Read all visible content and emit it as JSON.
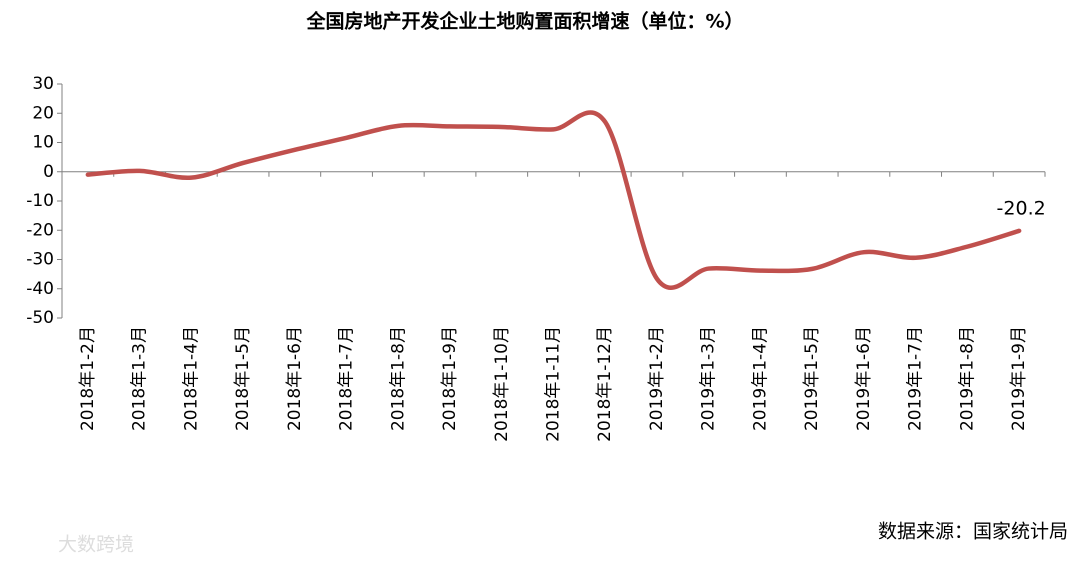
{
  "chart_data": {
    "type": "line",
    "title": "全国房地产开发企业土地购置面积增速（单位：%）",
    "categories": [
      "2018年1-2月",
      "2018年1-3月",
      "2018年1-4月",
      "2018年1-5月",
      "2018年1-6月",
      "2018年1-7月",
      "2018年1-8月",
      "2018年1-9月",
      "2018年1-10月",
      "2018年1-11月",
      "2018年1-12月",
      "2019年1-2月",
      "2019年1-3月",
      "2019年1-4月",
      "2019年1-5月",
      "2019年1-6月",
      "2019年1-7月",
      "2019年1-8月",
      "2019年1-9月"
    ],
    "values": [
      -1,
      0.3,
      -2,
      3,
      7.5,
      11.6,
      15.7,
      15.5,
      15.3,
      14.5,
      17,
      -36.6,
      -33.1,
      -33.8,
      -33.2,
      -27.5,
      -29.4,
      -25.6,
      -20.2
    ],
    "color": "#c0504d",
    "ylim": [
      -50,
      30
    ],
    "yticks": [
      -50,
      -40,
      -30,
      -20,
      -10,
      0,
      10,
      20,
      30
    ],
    "source": "数据来源：国家统计局",
    "watermark": "大数跨境"
  }
}
